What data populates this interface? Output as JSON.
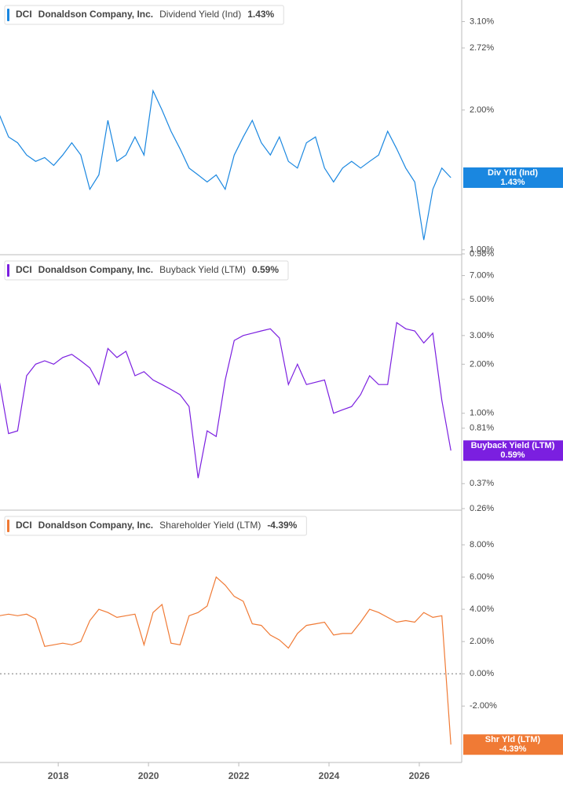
{
  "chart_data": [
    {
      "type": "line",
      "ticker": "DCI",
      "company": "Donaldson Company, Inc.",
      "title": "Dividend Yield (Ind)",
      "current_label": "1.43%",
      "tag": "Div Yld (Ind)",
      "color": "#1a87e0",
      "log_scale": true,
      "x": [
        2016.7,
        2016.9,
        2017.1,
        2017.3,
        2017.5,
        2017.7,
        2017.9,
        2018.1,
        2018.3,
        2018.5,
        2018.7,
        2018.9,
        2019.1,
        2019.3,
        2019.5,
        2019.7,
        2019.9,
        2020.1,
        2020.3,
        2020.5,
        2020.7,
        2020.9,
        2021.1,
        2021.3,
        2021.5,
        2021.7,
        2021.9,
        2022.1,
        2022.3,
        2022.5,
        2022.7,
        2022.9,
        2023.1,
        2023.3,
        2023.5,
        2023.7,
        2023.9,
        2024.1,
        2024.3,
        2024.5,
        2024.7,
        2024.9,
        2025.1,
        2025.3,
        2025.5,
        2025.7,
        2025.9,
        2026.1,
        2026.3,
        2026.5,
        2026.7
      ],
      "values": [
        1.95,
        1.75,
        1.7,
        1.6,
        1.55,
        1.58,
        1.52,
        1.6,
        1.7,
        1.6,
        1.35,
        1.45,
        1.9,
        1.55,
        1.6,
        1.75,
        1.6,
        2.2,
        2.0,
        1.8,
        1.65,
        1.5,
        1.45,
        1.4,
        1.45,
        1.35,
        1.6,
        1.75,
        1.9,
        1.7,
        1.6,
        1.75,
        1.55,
        1.5,
        1.7,
        1.75,
        1.5,
        1.4,
        1.5,
        1.55,
        1.5,
        1.55,
        1.6,
        1.8,
        1.65,
        1.5,
        1.4,
        1.05,
        1.35,
        1.5,
        1.43
      ],
      "xlim": [
        2016.71,
        2026.94
      ],
      "ylim": [
        0.98,
        3.45
      ],
      "yticks": [
        {
          "value": 0.98,
          "label": "0.98%"
        },
        {
          "value": 1,
          "label": "1.00%"
        },
        {
          "value": 2,
          "label": "2.00%"
        },
        {
          "value": 2.72,
          "label": "2.72%"
        },
        {
          "value": 3.1,
          "label": "3.10%"
        }
      ]
    },
    {
      "type": "line",
      "ticker": "DCI",
      "company": "Donaldson Company, Inc.",
      "title": "Buyback Yield (LTM)",
      "current_label": "0.59%",
      "tag": "Buyback Yield (LTM)",
      "color": "#7b1fe0",
      "log_scale": true,
      "x": [
        2016.7,
        2016.9,
        2017.1,
        2017.3,
        2017.5,
        2017.7,
        2017.9,
        2018.1,
        2018.3,
        2018.5,
        2018.7,
        2018.9,
        2019.1,
        2019.3,
        2019.5,
        2019.7,
        2019.9,
        2020.1,
        2020.3,
        2020.5,
        2020.7,
        2020.9,
        2021.1,
        2021.3,
        2021.5,
        2021.7,
        2021.9,
        2022.1,
        2022.3,
        2022.5,
        2022.7,
        2022.9,
        2023.1,
        2023.3,
        2023.5,
        2023.7,
        2023.9,
        2024.1,
        2024.3,
        2024.5,
        2024.7,
        2024.9,
        2025.1,
        2025.3,
        2025.5,
        2025.7,
        2025.9,
        2026.1,
        2026.3,
        2026.5,
        2026.7
      ],
      "values": [
        1.55,
        0.75,
        0.78,
        1.7,
        2.0,
        2.1,
        2.0,
        2.2,
        2.3,
        2.1,
        1.9,
        1.5,
        2.5,
        2.2,
        2.4,
        1.7,
        1.8,
        1.6,
        1.5,
        1.4,
        1.3,
        1.1,
        0.4,
        0.78,
        0.72,
        1.6,
        2.8,
        3.0,
        3.1,
        3.2,
        3.3,
        2.9,
        1.5,
        2.0,
        1.5,
        1.55,
        1.6,
        1.0,
        1.05,
        1.1,
        1.3,
        1.7,
        1.5,
        1.5,
        3.6,
        3.3,
        3.2,
        2.7,
        3.1,
        1.2,
        0.59
      ],
      "xlim": [
        2016.71,
        2026.94
      ],
      "ylim": [
        0.26,
        9.3
      ],
      "yticks": [
        {
          "value": 0.26,
          "label": "0.26%"
        },
        {
          "value": 0.37,
          "label": "0.37%"
        },
        {
          "value": 0.81,
          "label": "0.81%"
        },
        {
          "value": 1,
          "label": "1.00%"
        },
        {
          "value": 2,
          "label": "2.00%"
        },
        {
          "value": 3,
          "label": "3.00%"
        },
        {
          "value": 5,
          "label": "5.00%"
        },
        {
          "value": 7,
          "label": "7.00%"
        }
      ]
    },
    {
      "type": "line",
      "ticker": "DCI",
      "company": "Donaldson Company, Inc.",
      "title": "Shareholder Yield (LTM)",
      "current_label": "-4.39%",
      "tag": "Shr Yld (LTM)",
      "color": "#f07a35",
      "log_scale": false,
      "zero_line": true,
      "x": [
        2016.7,
        2016.9,
        2017.1,
        2017.3,
        2017.5,
        2017.7,
        2017.9,
        2018.1,
        2018.3,
        2018.5,
        2018.7,
        2018.9,
        2019.1,
        2019.3,
        2019.5,
        2019.7,
        2019.9,
        2020.1,
        2020.3,
        2020.5,
        2020.7,
        2020.9,
        2021.1,
        2021.3,
        2021.5,
        2021.7,
        2021.9,
        2022.1,
        2022.3,
        2022.5,
        2022.7,
        2022.9,
        2023.1,
        2023.3,
        2023.5,
        2023.7,
        2023.9,
        2024.1,
        2024.3,
        2024.5,
        2024.7,
        2024.9,
        2025.1,
        2025.3,
        2025.5,
        2025.7,
        2025.9,
        2026.1,
        2026.3,
        2026.5,
        2026.7
      ],
      "values": [
        3.6,
        3.7,
        3.6,
        3.7,
        3.4,
        1.7,
        1.8,
        1.9,
        1.8,
        2.0,
        3.3,
        4.0,
        3.8,
        3.5,
        3.6,
        3.7,
        1.8,
        3.8,
        4.3,
        1.9,
        1.8,
        3.6,
        3.8,
        4.2,
        6.0,
        5.5,
        4.8,
        4.5,
        3.1,
        3.0,
        2.4,
        2.1,
        1.6,
        2.5,
        3.0,
        3.1,
        3.2,
        2.4,
        2.5,
        2.5,
        3.2,
        4.0,
        3.8,
        3.5,
        3.2,
        3.3,
        3.2,
        3.8,
        3.5,
        3.6,
        -4.39
      ],
      "xlim": [
        2016.71,
        2026.94
      ],
      "ylim": [
        -5.5,
        10.1
      ],
      "yticks": [
        {
          "value": -2,
          "label": "-2.00%"
        },
        {
          "value": 0,
          "label": "0.00%"
        },
        {
          "value": 2,
          "label": "2.00%"
        },
        {
          "value": 4,
          "label": "4.00%"
        },
        {
          "value": 6,
          "label": "6.00%"
        },
        {
          "value": 8,
          "label": "8.00%"
        }
      ],
      "xticks": [
        2018,
        2020,
        2022,
        2024,
        2026
      ]
    }
  ]
}
